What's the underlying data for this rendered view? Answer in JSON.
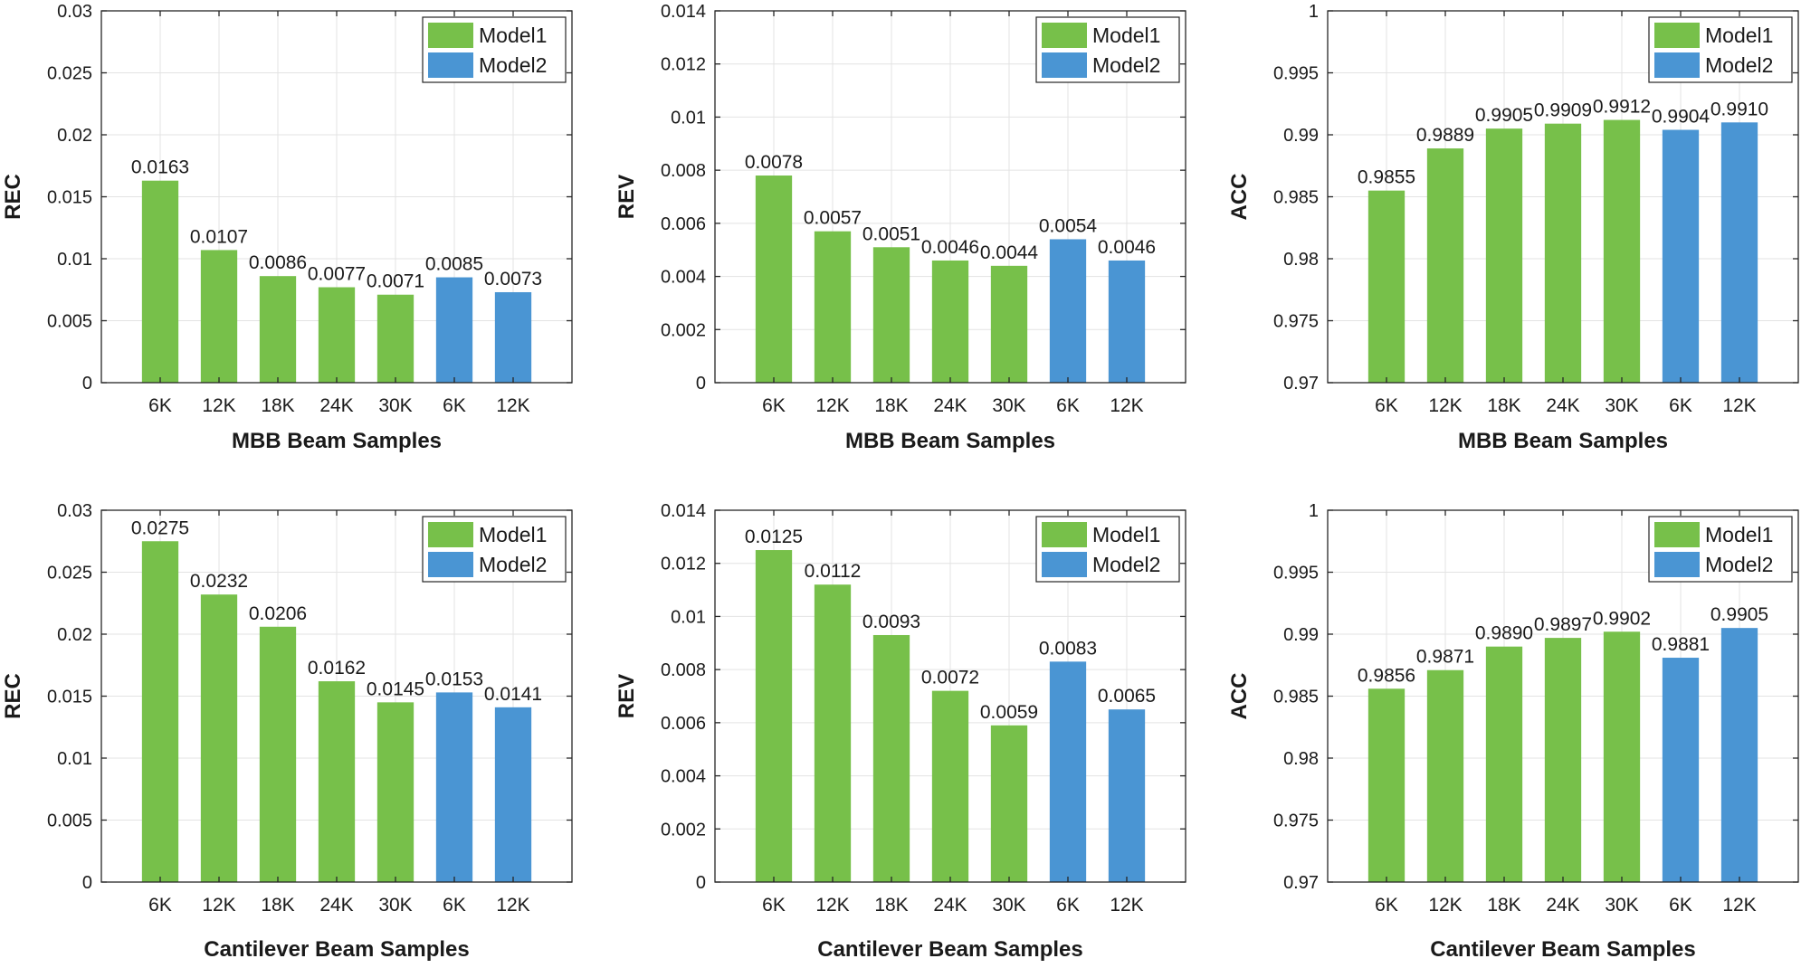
{
  "figure": {
    "colors": {
      "model1": "#77c04a",
      "model2": "#4a95d3",
      "grid": "#e3e3e3",
      "axis": "#262626"
    }
  },
  "chart_data": [
    {
      "type": "bar",
      "ylabel": "REC",
      "xlabel": "MBB Beam Samples",
      "categories": [
        "6K",
        "12K",
        "18K",
        "24K",
        "30K",
        "6K",
        "12K"
      ],
      "values": [
        0.0163,
        0.0107,
        0.0086,
        0.0077,
        0.0071,
        0.0085,
        0.0073
      ],
      "labels": [
        "0.0163",
        "0.0107",
        "0.0086",
        "0.0077",
        "0.0071",
        "0.0085",
        "0.0073"
      ],
      "series_index": [
        0,
        0,
        0,
        0,
        0,
        1,
        1
      ],
      "ylim": [
        0,
        0.03
      ],
      "yticks": [
        "0",
        "0.005",
        "0.01",
        "0.015",
        "0.02",
        "0.025",
        "0.03"
      ],
      "legend": [
        "Model1",
        "Model2"
      ],
      "legend_position": "top-right",
      "grid": true
    },
    {
      "type": "bar",
      "ylabel": "REV",
      "xlabel": "MBB Beam Samples",
      "categories": [
        "6K",
        "12K",
        "18K",
        "24K",
        "30K",
        "6K",
        "12K"
      ],
      "values": [
        0.0078,
        0.0057,
        0.0051,
        0.0046,
        0.0044,
        0.0054,
        0.0046
      ],
      "labels": [
        "0.0078",
        "0.0057",
        "0.0051",
        "0.0046",
        "0.0044",
        "0.0054",
        "0.0046"
      ],
      "series_index": [
        0,
        0,
        0,
        0,
        0,
        1,
        1
      ],
      "ylim": [
        0,
        0.014
      ],
      "yticks": [
        "0",
        "0.002",
        "0.004",
        "0.006",
        "0.008",
        "0.01",
        "0.012",
        "0.014"
      ],
      "legend": [
        "Model1",
        "Model2"
      ],
      "legend_position": "top-right",
      "grid": true
    },
    {
      "type": "bar",
      "ylabel": "ACC",
      "xlabel": "MBB Beam Samples",
      "categories": [
        "6K",
        "12K",
        "18K",
        "24K",
        "30K",
        "6K",
        "12K"
      ],
      "values": [
        0.9855,
        0.9889,
        0.9905,
        0.9909,
        0.9912,
        0.9904,
        0.991
      ],
      "labels": [
        "0.9855",
        "0.9889",
        "0.9905",
        "0.9909",
        "0.9912",
        "0.9904",
        "0.9910"
      ],
      "series_index": [
        0,
        0,
        0,
        0,
        0,
        1,
        1
      ],
      "ylim": [
        0.97,
        1
      ],
      "yticks": [
        "0.97",
        "0.975",
        "0.98",
        "0.985",
        "0.99",
        "0.995",
        "1"
      ],
      "legend": [
        "Model1",
        "Model2"
      ],
      "legend_position": "top-right",
      "grid": true
    },
    {
      "type": "bar",
      "ylabel": "REC",
      "xlabel": "Cantilever Beam Samples",
      "categories": [
        "6K",
        "12K",
        "18K",
        "24K",
        "30K",
        "6K",
        "12K"
      ],
      "values": [
        0.0275,
        0.0232,
        0.0206,
        0.0162,
        0.0145,
        0.0153,
        0.0141
      ],
      "labels": [
        "0.0275",
        "0.0232",
        "0.0206",
        "0.0162",
        "0.0145",
        "0.0153",
        "0.0141"
      ],
      "series_index": [
        0,
        0,
        0,
        0,
        0,
        1,
        1
      ],
      "ylim": [
        0,
        0.03
      ],
      "yticks": [
        "0",
        "0.005",
        "0.01",
        "0.015",
        "0.02",
        "0.025",
        "0.03"
      ],
      "legend": [
        "Model1",
        "Model2"
      ],
      "legend_position": "top-right",
      "grid": true
    },
    {
      "type": "bar",
      "ylabel": "REV",
      "xlabel": "Cantilever Beam Samples",
      "categories": [
        "6K",
        "12K",
        "18K",
        "24K",
        "30K",
        "6K",
        "12K"
      ],
      "values": [
        0.0125,
        0.0112,
        0.0093,
        0.0072,
        0.0059,
        0.0083,
        0.0065
      ],
      "labels": [
        "0.0125",
        "0.0112",
        "0.0093",
        "0.0072",
        "0.0059",
        "0.0083",
        "0.0065"
      ],
      "series_index": [
        0,
        0,
        0,
        0,
        0,
        1,
        1
      ],
      "ylim": [
        0,
        0.014
      ],
      "yticks": [
        "0",
        "0.002",
        "0.004",
        "0.006",
        "0.008",
        "0.01",
        "0.012",
        "0.014"
      ],
      "legend": [
        "Model1",
        "Model2"
      ],
      "legend_position": "top-right",
      "grid": true
    },
    {
      "type": "bar",
      "ylabel": "ACC",
      "xlabel": "Cantilever Beam Samples",
      "categories": [
        "6K",
        "12K",
        "18K",
        "24K",
        "30K",
        "6K",
        "12K"
      ],
      "values": [
        0.9856,
        0.9871,
        0.989,
        0.9897,
        0.9902,
        0.9881,
        0.9905
      ],
      "labels": [
        "0.9856",
        "0.9871",
        "0.9890",
        "0.9897",
        "0.9902",
        "0.9881",
        "0.9905"
      ],
      "series_index": [
        0,
        0,
        0,
        0,
        0,
        1,
        1
      ],
      "ylim": [
        0.97,
        1
      ],
      "yticks": [
        "0.97",
        "0.975",
        "0.98",
        "0.985",
        "0.99",
        "0.995",
        "1"
      ],
      "legend": [
        "Model1",
        "Model2"
      ],
      "legend_position": "top-right",
      "grid": true
    }
  ]
}
